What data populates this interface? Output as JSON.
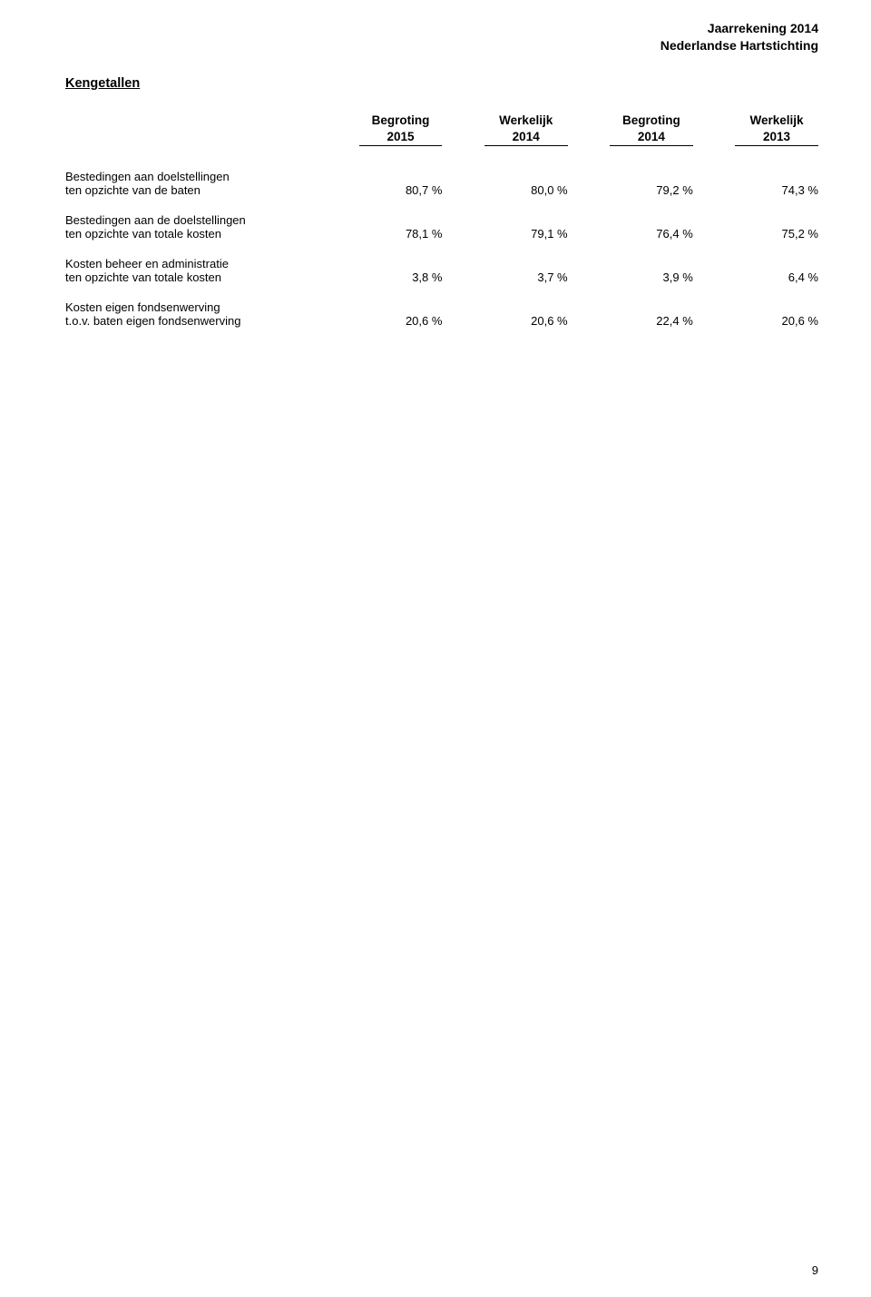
{
  "header": {
    "line1": "Jaarrekening 2014",
    "line2": "Nederlandse Hartstichting"
  },
  "section_title": "Kengetallen",
  "columns": [
    {
      "line1": "Begroting",
      "line2": "2015"
    },
    {
      "line1": "Werkelijk",
      "line2": "2014"
    },
    {
      "line1": "Begroting",
      "line2": "2014"
    },
    {
      "line1": "Werkelijk",
      "line2": "2013"
    }
  ],
  "rows": [
    {
      "label_line1": "Bestedingen aan doelstellingen",
      "label_line2": "ten opzichte van de baten",
      "values": [
        "80,7 %",
        "80,0 %",
        "79,2 %",
        "74,3 %"
      ]
    },
    {
      "label_line1": "Bestedingen aan de doelstellingen",
      "label_line2": "ten opzichte van totale kosten",
      "values": [
        "78,1 %",
        "79,1 %",
        "76,4 %",
        "75,2 %"
      ]
    },
    {
      "label_line1": "Kosten beheer en administratie",
      "label_line2": "ten opzichte van totale kosten",
      "values": [
        "3,8 %",
        "3,7 %",
        "3,9 %",
        "6,4 %"
      ]
    },
    {
      "label_line1": "Kosten eigen fondsenwerving",
      "label_line2": "t.o.v. baten eigen fondsenwerving",
      "values": [
        "20,6 %",
        "20,6 %",
        "22,4 %",
        "20,6 %"
      ]
    }
  ],
  "page_number": "9"
}
